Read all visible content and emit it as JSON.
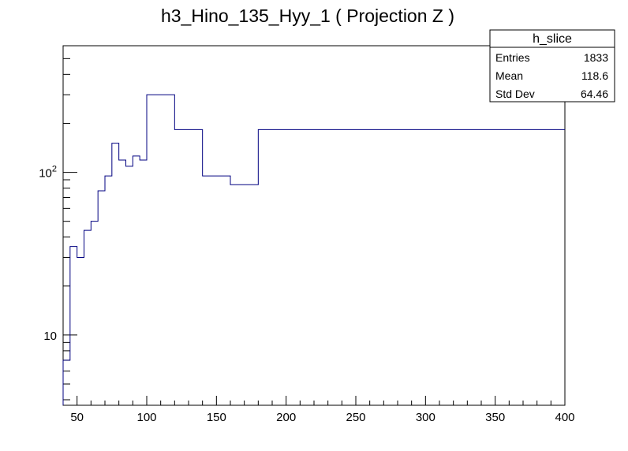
{
  "chart_data": {
    "type": "histogram",
    "title": "h3_Hino_135_Hyy_1 ( Projection Z )",
    "xlabel": "",
    "ylabel": "",
    "xlim": [
      40,
      400
    ],
    "ylim": [
      3.7,
      600
    ],
    "y_scale": "log",
    "x_tick_labels": [
      "50",
      "100",
      "150",
      "200",
      "250",
      "300",
      "350",
      "400"
    ],
    "y_tick_labels": [
      {
        "base": "10",
        "exp": "",
        "value": 10
      },
      {
        "base": "10",
        "exp": "2",
        "value": 100
      }
    ],
    "bins": [
      {
        "x0": 40,
        "x1": 45,
        "value": 7
      },
      {
        "x0": 45,
        "x1": 50,
        "value": 35
      },
      {
        "x0": 50,
        "x1": 55,
        "value": 30
      },
      {
        "x0": 55,
        "x1": 60,
        "value": 44
      },
      {
        "x0": 60,
        "x1": 65,
        "value": 50
      },
      {
        "x0": 65,
        "x1": 70,
        "value": 77
      },
      {
        "x0": 70,
        "x1": 75,
        "value": 95
      },
      {
        "x0": 75,
        "x1": 80,
        "value": 151
      },
      {
        "x0": 80,
        "x1": 85,
        "value": 119
      },
      {
        "x0": 85,
        "x1": 90,
        "value": 109
      },
      {
        "x0": 90,
        "x1": 95,
        "value": 126
      },
      {
        "x0": 95,
        "x1": 100,
        "value": 119
      },
      {
        "x0": 100,
        "x1": 120,
        "value": 300
      },
      {
        "x0": 120,
        "x1": 140,
        "value": 183
      },
      {
        "x0": 140,
        "x1": 160,
        "value": 95
      },
      {
        "x0": 160,
        "x1": 180,
        "value": 84
      },
      {
        "x0": 180,
        "x1": 400,
        "value": 183
      }
    ],
    "line_color": "#000080",
    "stats_box": {
      "title": "h_slice",
      "rows": [
        {
          "label": "Entries",
          "value": "1833"
        },
        {
          "label": "Mean",
          "value": "118.6"
        },
        {
          "label": "Std Dev",
          "value": "64.46"
        }
      ]
    },
    "grid": false,
    "legend": "none"
  }
}
